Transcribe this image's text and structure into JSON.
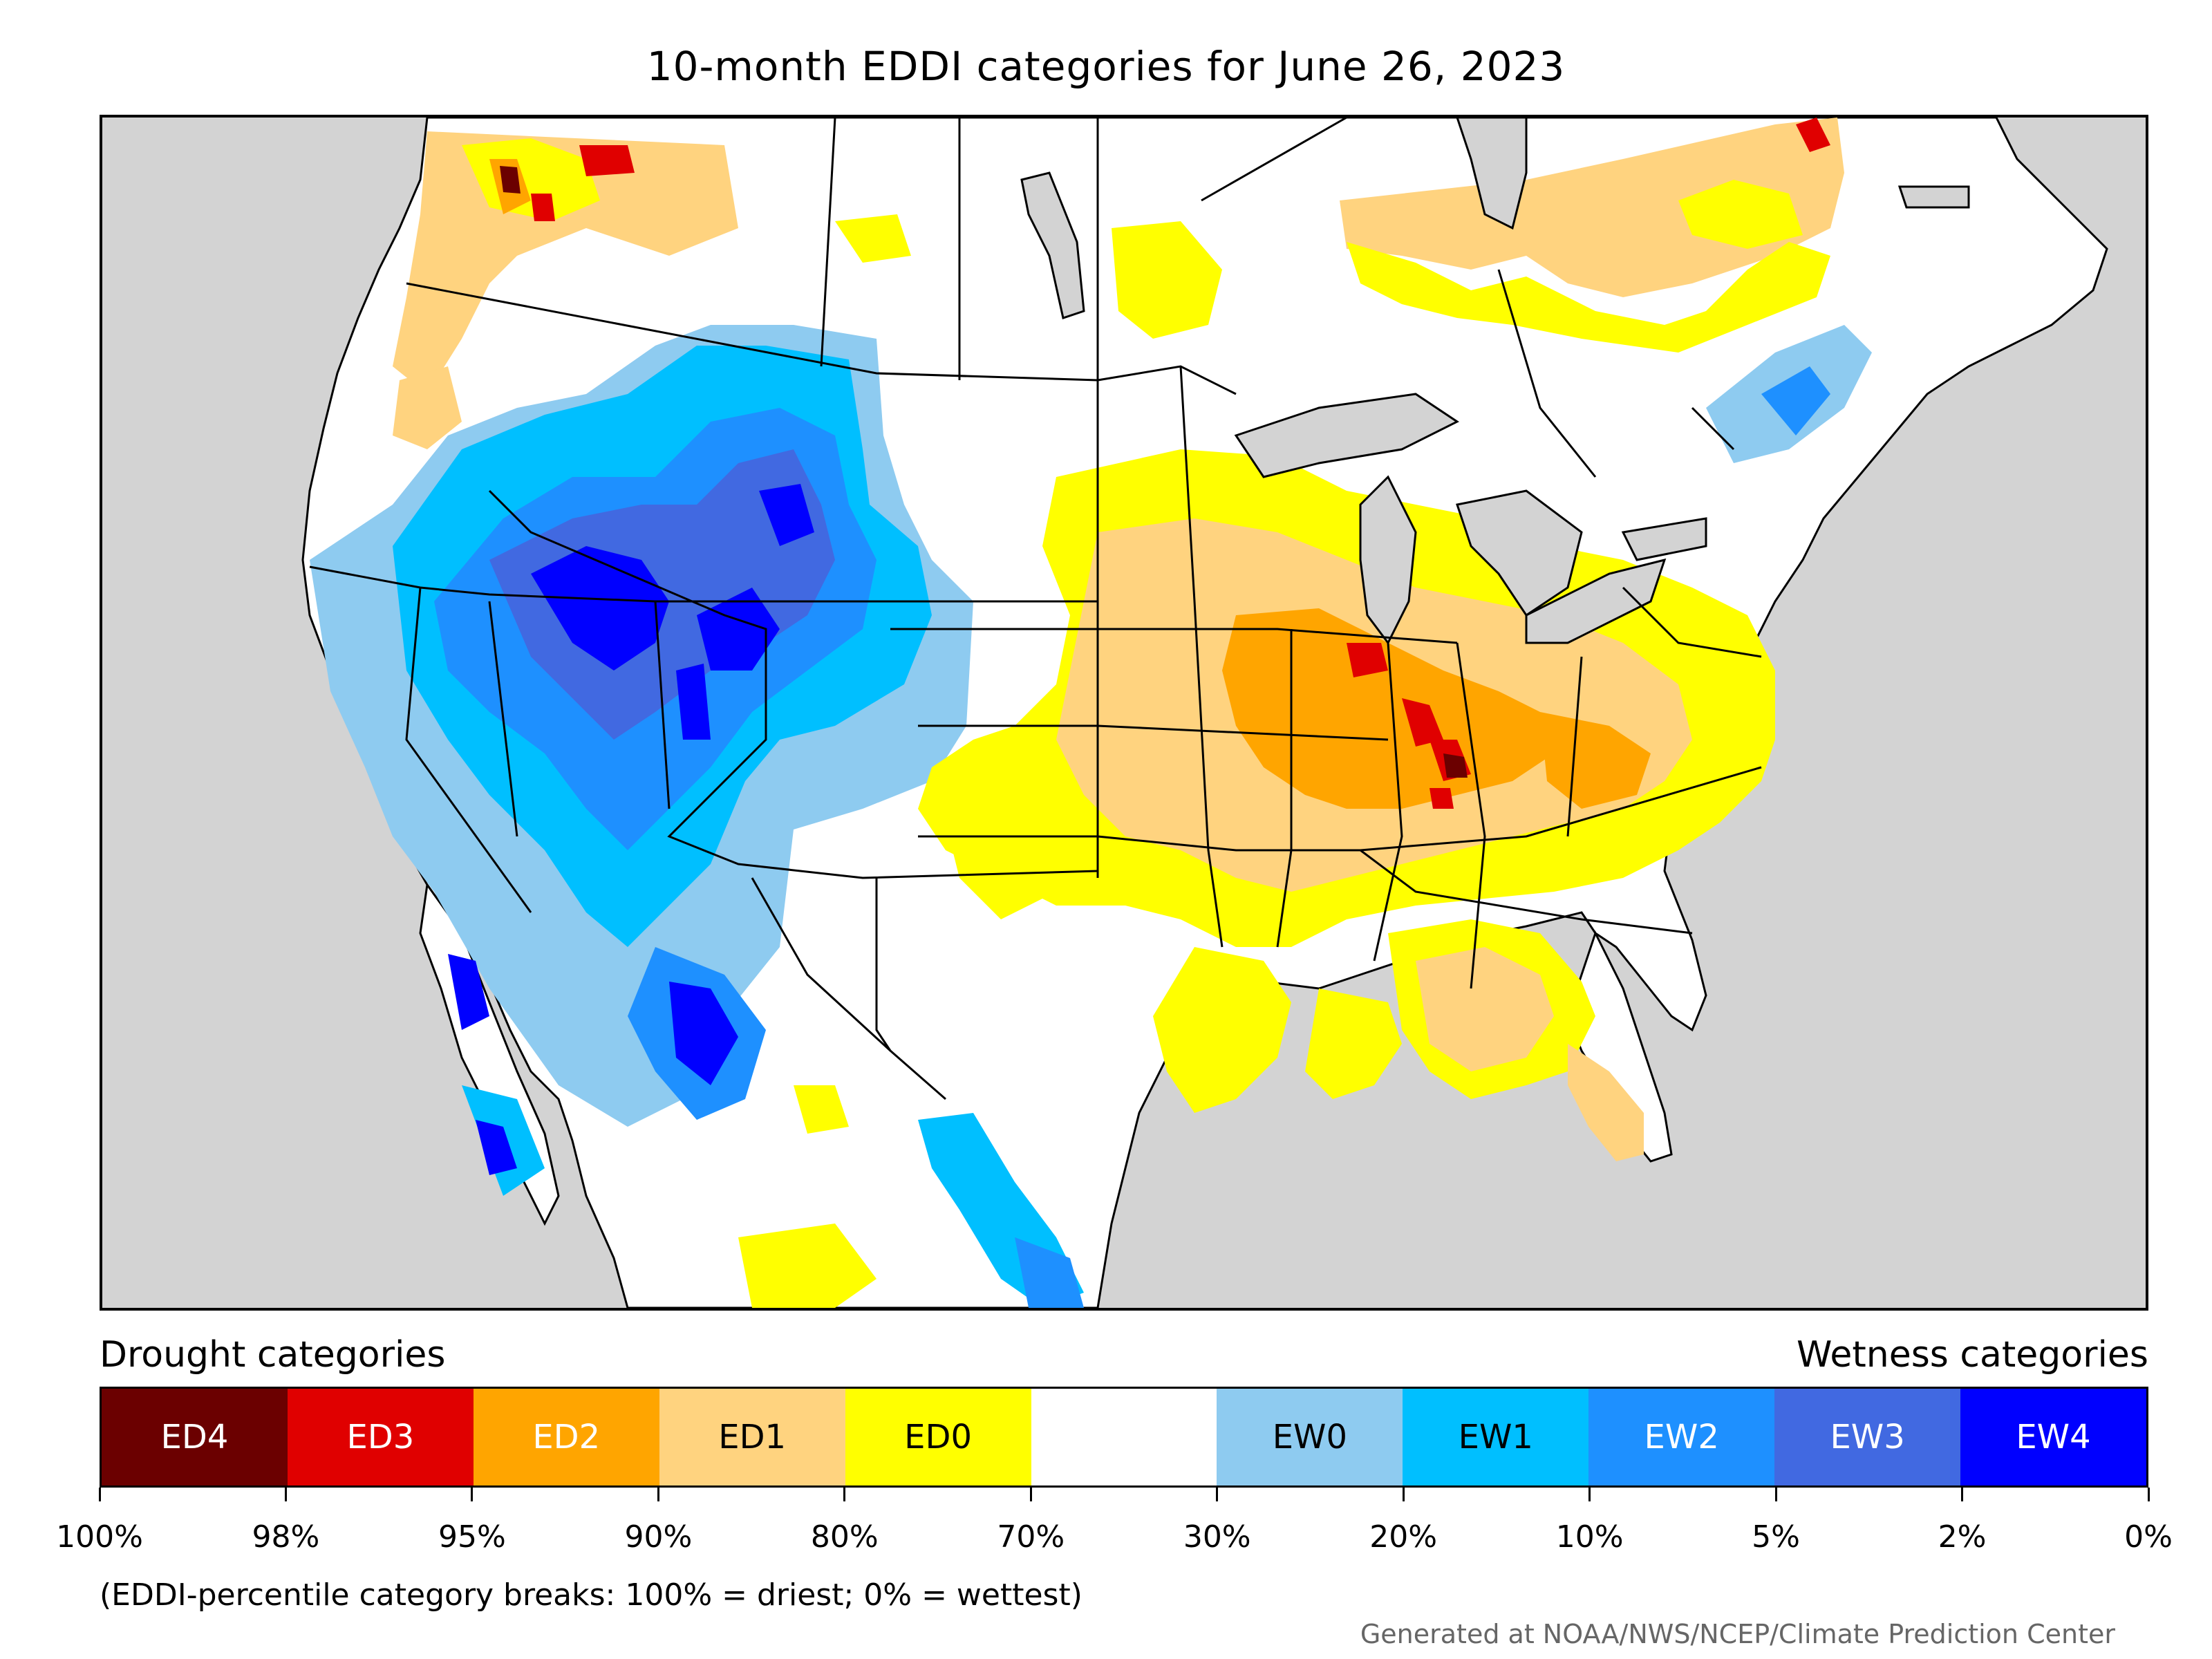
{
  "title": "10-month EDDI categories for June 26, 2023",
  "legend": {
    "left_label": "Drought categories",
    "right_label": "Wetness categories",
    "categories": [
      {
        "label": "ED4",
        "color": "#6b0000",
        "text_color": "#ffffff"
      },
      {
        "label": "ED3",
        "color": "#e00000",
        "text_color": "#ffffff"
      },
      {
        "label": "ED2",
        "color": "#ffa500",
        "text_color": "#ffffff"
      },
      {
        "label": "ED1",
        "color": "#ffd37f",
        "text_color": "#000000"
      },
      {
        "label": "ED0",
        "color": "#ffff00",
        "text_color": "#000000"
      },
      {
        "label": "",
        "color": "#ffffff",
        "text_color": "#000000"
      },
      {
        "label": "EW0",
        "color": "#8ecbf0",
        "text_color": "#000000"
      },
      {
        "label": "EW1",
        "color": "#00bfff",
        "text_color": "#000000"
      },
      {
        "label": "EW2",
        "color": "#1e90ff",
        "text_color": "#ffffff"
      },
      {
        "label": "EW3",
        "color": "#4169e1",
        "text_color": "#ffffff"
      },
      {
        "label": "EW4",
        "color": "#0000ff",
        "text_color": "#ffffff"
      }
    ],
    "tick_labels": [
      "100%",
      "98%",
      "95%",
      "90%",
      "80%",
      "70%",
      "30%",
      "20%",
      "10%",
      "5%",
      "2%",
      "0%"
    ]
  },
  "footnote": "(EDDI-percentile category breaks: 100% = driest; 0% = wettest)",
  "credit": "Generated at NOAA/NWS/NCEP/Climate Prediction Center",
  "colors": {
    "ocean": "#d3d3d3",
    "land": "#ffffff",
    "lakes": "#d3d3d3"
  }
}
